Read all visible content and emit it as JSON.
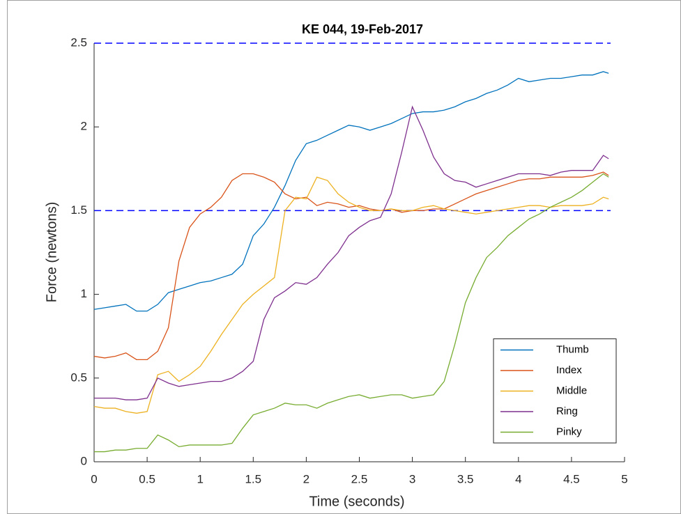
{
  "chart_data": {
    "type": "line",
    "title": "KE 044, 19-Feb-2017",
    "x_label": "Time (seconds)",
    "y_label": "Force (newtons)",
    "x": [
      0,
      0.1,
      0.2,
      0.3,
      0.4,
      0.5,
      0.6,
      0.7,
      0.8,
      0.9,
      1.0,
      1.1,
      1.2,
      1.3,
      1.4,
      1.5,
      1.6,
      1.7,
      1.8,
      1.9,
      2.0,
      2.1,
      2.2,
      2.3,
      2.4,
      2.5,
      2.6,
      2.7,
      2.8,
      2.9,
      3.0,
      3.1,
      3.2,
      3.3,
      3.4,
      3.5,
      3.6,
      3.7,
      3.8,
      3.9,
      4.0,
      4.1,
      4.2,
      4.3,
      4.4,
      4.5,
      4.6,
      4.7,
      4.8,
      4.85
    ],
    "series": [
      {
        "name": "Thumb",
        "color": "#0072bd",
        "values": [
          0.91,
          0.92,
          0.93,
          0.94,
          0.9,
          0.9,
          0.94,
          1.01,
          1.03,
          1.05,
          1.07,
          1.08,
          1.1,
          1.12,
          1.18,
          1.35,
          1.42,
          1.52,
          1.65,
          1.8,
          1.9,
          1.92,
          1.95,
          1.98,
          2.01,
          2.0,
          1.98,
          2.0,
          2.02,
          2.05,
          2.08,
          2.09,
          2.09,
          2.1,
          2.12,
          2.15,
          2.17,
          2.2,
          2.22,
          2.25,
          2.29,
          2.27,
          2.28,
          2.29,
          2.29,
          2.3,
          2.31,
          2.31,
          2.33,
          2.32
        ]
      },
      {
        "name": "Index",
        "color": "#d95319",
        "values": [
          0.63,
          0.62,
          0.63,
          0.65,
          0.61,
          0.61,
          0.66,
          0.8,
          1.2,
          1.4,
          1.48,
          1.52,
          1.58,
          1.68,
          1.72,
          1.72,
          1.7,
          1.67,
          1.6,
          1.57,
          1.58,
          1.53,
          1.55,
          1.54,
          1.52,
          1.53,
          1.51,
          1.5,
          1.51,
          1.49,
          1.5,
          1.5,
          1.51,
          1.51,
          1.54,
          1.57,
          1.6,
          1.62,
          1.64,
          1.66,
          1.68,
          1.69,
          1.69,
          1.7,
          1.7,
          1.7,
          1.7,
          1.71,
          1.73,
          1.71
        ]
      },
      {
        "name": "Middle",
        "color": "#edb120",
        "values": [
          0.33,
          0.32,
          0.32,
          0.3,
          0.29,
          0.3,
          0.52,
          0.54,
          0.48,
          0.52,
          0.57,
          0.66,
          0.76,
          0.85,
          0.94,
          1.0,
          1.05,
          1.1,
          1.5,
          1.58,
          1.57,
          1.7,
          1.68,
          1.6,
          1.55,
          1.52,
          1.5,
          1.5,
          1.51,
          1.5,
          1.5,
          1.52,
          1.53,
          1.51,
          1.5,
          1.49,
          1.48,
          1.49,
          1.5,
          1.51,
          1.52,
          1.53,
          1.53,
          1.52,
          1.53,
          1.53,
          1.53,
          1.54,
          1.58,
          1.57
        ]
      },
      {
        "name": "Ring",
        "color": "#7e2f8e",
        "values": [
          0.38,
          0.38,
          0.38,
          0.37,
          0.37,
          0.38,
          0.5,
          0.47,
          0.45,
          0.46,
          0.47,
          0.48,
          0.48,
          0.5,
          0.54,
          0.6,
          0.85,
          0.98,
          1.02,
          1.07,
          1.06,
          1.1,
          1.18,
          1.25,
          1.35,
          1.4,
          1.44,
          1.46,
          1.6,
          1.85,
          2.12,
          1.98,
          1.82,
          1.72,
          1.68,
          1.67,
          1.64,
          1.66,
          1.68,
          1.7,
          1.72,
          1.72,
          1.72,
          1.71,
          1.73,
          1.74,
          1.74,
          1.74,
          1.83,
          1.81
        ]
      },
      {
        "name": "Pinky",
        "color": "#77ac30",
        "values": [
          0.06,
          0.06,
          0.07,
          0.07,
          0.08,
          0.08,
          0.16,
          0.13,
          0.09,
          0.1,
          0.1,
          0.1,
          0.1,
          0.11,
          0.2,
          0.28,
          0.3,
          0.32,
          0.35,
          0.34,
          0.34,
          0.32,
          0.35,
          0.37,
          0.39,
          0.4,
          0.38,
          0.39,
          0.4,
          0.4,
          0.38,
          0.39,
          0.4,
          0.48,
          0.7,
          0.95,
          1.1,
          1.22,
          1.28,
          1.35,
          1.4,
          1.45,
          1.48,
          1.52,
          1.55,
          1.58,
          1.62,
          1.67,
          1.72,
          1.7
        ]
      }
    ],
    "reference_lines": {
      "values": [
        1.5,
        2.5
      ],
      "color": "#0000ff",
      "style": "dashed"
    },
    "xlim": [
      0,
      5
    ],
    "ylim": [
      0,
      2.5
    ],
    "xticks": [
      0,
      0.5,
      1,
      1.5,
      2,
      2.5,
      3,
      3.5,
      4,
      4.5,
      5
    ],
    "yticks": [
      0,
      0.5,
      1,
      1.5,
      2,
      2.5
    ],
    "legend": "southeast"
  }
}
